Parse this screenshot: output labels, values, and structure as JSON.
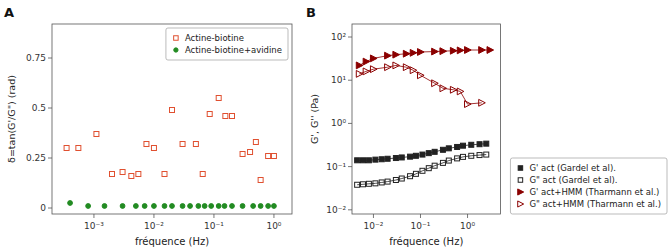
{
  "chart_data": [
    {
      "type": "scatter",
      "title": "A",
      "xlabel": "fréquence (Hz)",
      "ylabel": "δ=tan(G'/G\") (rad)",
      "log": "x",
      "xlim": [
        0.0002,
        2.0
      ],
      "ylim": [
        -0.03,
        0.92
      ],
      "xticks": [
        {
          "value": 0.001,
          "label": "10⁻³"
        },
        {
          "value": 0.01,
          "label": "10⁻²"
        },
        {
          "value": 0.1,
          "label": "10⁻¹"
        },
        {
          "value": 1,
          "label": "10⁰"
        }
      ],
      "yticks": [
        0,
        0.25,
        0.5,
        0.75
      ],
      "grid": false,
      "legend": "upper right",
      "series": [
        {
          "name": "Actine-biotine",
          "color": "#e05030",
          "marker": "square-open",
          "x": [
            0.00035,
            0.00055,
            0.0011,
            0.002,
            0.003,
            0.0042,
            0.0055,
            0.0075,
            0.01,
            0.015,
            0.02,
            0.03,
            0.05,
            0.065,
            0.085,
            0.12,
            0.155,
            0.2,
            0.3,
            0.4,
            0.5,
            0.6,
            0.8,
            1.0
          ],
          "values": [
            0.3,
            0.3,
            0.37,
            0.17,
            0.18,
            0.16,
            0.17,
            0.32,
            0.3,
            0.17,
            0.49,
            0.32,
            0.32,
            0.17,
            0.47,
            0.55,
            0.46,
            0.46,
            0.27,
            0.28,
            0.33,
            0.14,
            0.26,
            0.26
          ]
        },
        {
          "name": "Actine-biotine+avidine",
          "color": "#228B22",
          "marker": "circle",
          "x": [
            0.0004,
            0.0008,
            0.0015,
            0.003,
            0.005,
            0.007,
            0.01,
            0.015,
            0.02,
            0.03,
            0.04,
            0.055,
            0.07,
            0.09,
            0.12,
            0.15,
            0.2,
            0.3,
            0.45,
            0.6,
            0.8,
            1.0
          ],
          "values": [
            0.025,
            0.01,
            0.01,
            0.01,
            0.01,
            0.01,
            0.01,
            0.01,
            0.01,
            0.01,
            0.01,
            0.01,
            0.01,
            0.01,
            0.01,
            0.01,
            0.01,
            0.01,
            0.01,
            0.01,
            0.01,
            0.01
          ]
        }
      ]
    },
    {
      "type": "line",
      "title": "B",
      "xlabel": "fréquence (Hz)",
      "ylabel": "G', G'' (Pa)",
      "log": true,
      "xlim": [
        0.0035,
        5.0
      ],
      "ylim": [
        0.008,
        200
      ],
      "xticks": [
        {
          "value": 0.01,
          "label": "10⁻²"
        },
        {
          "value": 0.1,
          "label": "10⁻¹"
        },
        {
          "value": 1,
          "label": "10⁰"
        }
      ],
      "yticks": [
        {
          "value": 0.01,
          "label": "10⁻²"
        },
        {
          "value": 0.1,
          "label": "10⁻¹"
        },
        {
          "value": 1,
          "label": "10⁰"
        },
        {
          "value": 10,
          "label": "10¹"
        },
        {
          "value": 100,
          "label": "10²"
        }
      ],
      "grid": false,
      "legend": "lower right",
      "series": [
        {
          "name": "G' act (Gardel et al).",
          "color": "#222222",
          "marker": "square",
          "x": [
            0.0045,
            0.006,
            0.008,
            0.011,
            0.015,
            0.02,
            0.03,
            0.04,
            0.06,
            0.08,
            0.11,
            0.15,
            0.2,
            0.3,
            0.4,
            0.6,
            0.8,
            1.2,
            1.8,
            2.5
          ],
          "values": [
            0.14,
            0.14,
            0.14,
            0.145,
            0.148,
            0.152,
            0.158,
            0.163,
            0.17,
            0.178,
            0.19,
            0.205,
            0.22,
            0.245,
            0.265,
            0.285,
            0.305,
            0.32,
            0.33,
            0.34
          ]
        },
        {
          "name": "G\" act (Gardel et al).",
          "color": "#222222",
          "marker": "square-open",
          "x": [
            0.0045,
            0.006,
            0.008,
            0.011,
            0.015,
            0.02,
            0.03,
            0.04,
            0.06,
            0.08,
            0.11,
            0.15,
            0.2,
            0.3,
            0.4,
            0.6,
            0.8,
            1.2,
            1.8,
            2.5
          ],
          "values": [
            0.038,
            0.039,
            0.04,
            0.041,
            0.043,
            0.045,
            0.049,
            0.053,
            0.06,
            0.068,
            0.08,
            0.092,
            0.105,
            0.122,
            0.138,
            0.155,
            0.168,
            0.178,
            0.185,
            0.19
          ]
        },
        {
          "name": "G' act+HMM (Tharmann et al.)",
          "color": "#8B0000",
          "marker": "triangle-right",
          "x": [
            0.005,
            0.007,
            0.01,
            0.02,
            0.03,
            0.05,
            0.07,
            0.1,
            0.2,
            0.3,
            0.5,
            0.7,
            1.0,
            2.0,
            3.0
          ],
          "values": [
            22,
            27,
            32,
            37,
            39,
            41,
            43,
            45,
            46,
            47,
            48,
            49,
            50,
            50,
            50
          ]
        },
        {
          "name": "G\" act+HMM (Tharmann et al.)",
          "color": "#8B0000",
          "marker": "triangle-right-open",
          "x": [
            0.005,
            0.007,
            0.01,
            0.02,
            0.03,
            0.05,
            0.07,
            0.1,
            0.2,
            0.3,
            0.5,
            0.7,
            1.0,
            2.0
          ],
          "values": [
            14,
            16,
            18,
            20,
            22,
            20,
            17,
            13,
            8.5,
            6.5,
            6.0,
            5.5,
            2.8,
            3.0
          ]
        }
      ]
    }
  ]
}
